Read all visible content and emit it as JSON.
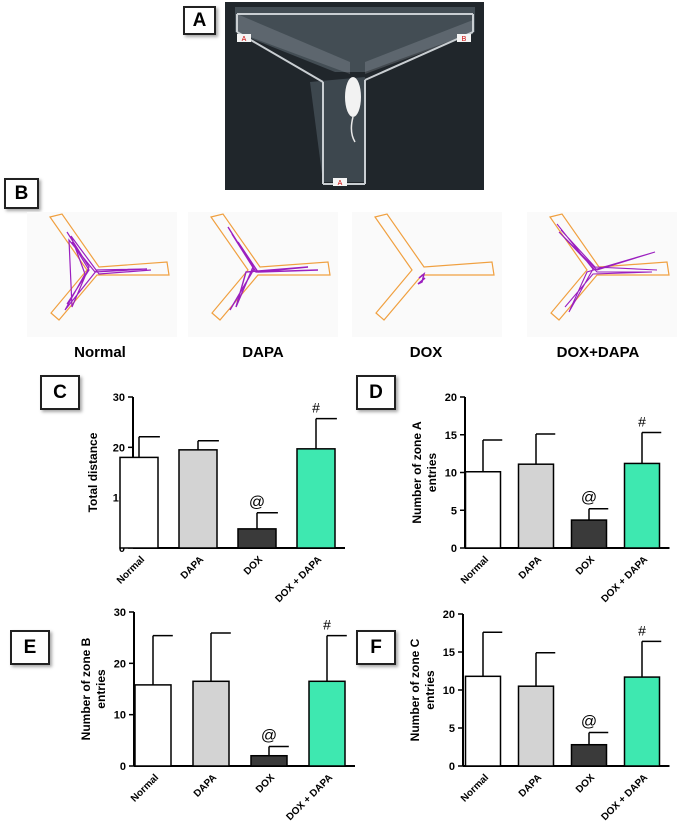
{
  "panel_labels": {
    "a": "A",
    "b": "B",
    "c": "C",
    "d": "D",
    "e": "E",
    "f": "F"
  },
  "groups": [
    "Normal",
    "DAPA",
    "DOX",
    "DOX+DAPA"
  ],
  "photo_marks": {
    "arm_left": "A",
    "arm_right": "B",
    "arm_bottom": "A"
  },
  "colors": {
    "Normal": "#ffffff",
    "DAPA": "#d3d3d3",
    "DOX": "#3a3a3a",
    "DOX + DAPA": "#3ee8b0",
    "track": "#9b1fbf",
    "maze": "#f0a040"
  },
  "chart_data": [
    {
      "panel": "C",
      "type": "bar",
      "categories": [
        "Normal",
        "DAPA",
        "DOX",
        "DOX + DAPA"
      ],
      "values": [
        18,
        19.5,
        3.8,
        19.7
      ],
      "errors": [
        4.1,
        1.8,
        3.2,
        6.0
      ],
      "significance": [
        "",
        "",
        "@",
        "#"
      ],
      "ylabel": "Total distance",
      "ylim": [
        0,
        30
      ],
      "yticks": [
        0,
        10,
        20,
        30
      ]
    },
    {
      "panel": "D",
      "type": "bar",
      "categories": [
        "Normal",
        "DAPA",
        "DOX",
        "DOX + DAPA"
      ],
      "values": [
        10.1,
        11.1,
        3.7,
        11.2
      ],
      "errors": [
        4.2,
        4.0,
        1.5,
        4.1
      ],
      "significance": [
        "",
        "",
        "@",
        "#"
      ],
      "ylabel": "Number of zone A entries",
      "ylabel_lines": [
        "Number of zone A",
        "entries"
      ],
      "ylim": [
        0,
        20
      ],
      "yticks": [
        0,
        5,
        10,
        15,
        20
      ]
    },
    {
      "panel": "E",
      "type": "bar",
      "categories": [
        "Normal",
        "DAPA",
        "DOX",
        "DOX + DAPA"
      ],
      "values": [
        15.8,
        16.5,
        2.0,
        16.5
      ],
      "errors": [
        9.6,
        9.4,
        1.8,
        8.9
      ],
      "significance": [
        "",
        "",
        "@",
        "#"
      ],
      "ylabel": "Number of zone B entries",
      "ylabel_lines": [
        "Number of zone B",
        "entries"
      ],
      "ylim": [
        0,
        30
      ],
      "yticks": [
        0,
        10,
        20,
        30
      ]
    },
    {
      "panel": "F",
      "type": "bar",
      "categories": [
        "Normal",
        "DAPA",
        "DOX",
        "DOX + DAPA"
      ],
      "values": [
        11.8,
        10.5,
        2.8,
        11.7
      ],
      "errors": [
        5.8,
        4.4,
        1.6,
        4.7
      ],
      "significance": [
        "",
        "",
        "@",
        "#"
      ],
      "ylabel": "Number of zone C entries",
      "ylabel_lines": [
        "Number of zone C",
        "entries"
      ],
      "ylim": [
        0,
        20
      ],
      "yticks": [
        0,
        5,
        10,
        15,
        20
      ]
    }
  ]
}
